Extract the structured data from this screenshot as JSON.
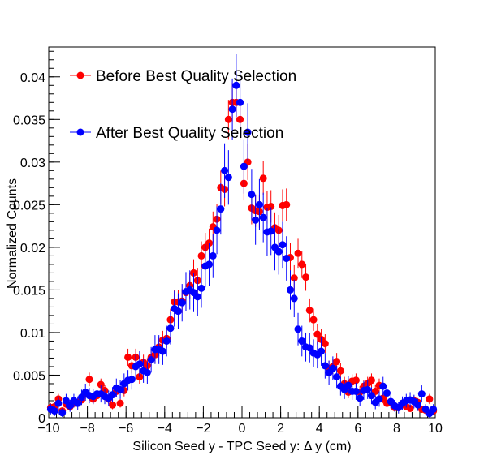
{
  "chart_data": {
    "type": "scatter",
    "title": "",
    "xlabel": "Silicon Seed y - TPC Seed y:     Δ y (cm)",
    "ylabel": "Normalized Counts",
    "xlim": [
      -10,
      10
    ],
    "ylim": [
      0,
      0.0435
    ],
    "x_ticks": [
      -10,
      -8,
      -6,
      -4,
      -2,
      0,
      2,
      4,
      6,
      8,
      10
    ],
    "x_tick_labels": [
      "−10",
      "−8",
      "−6",
      "−4",
      "−2",
      "0",
      "2",
      "4",
      "6",
      "8",
      "10"
    ],
    "y_ticks": [
      0,
      0.005,
      0.01,
      0.015,
      0.02,
      0.025,
      0.03,
      0.035,
      0.04
    ],
    "y_tick_labels": [
      "0",
      "0.005",
      "0.01",
      "0.015",
      "0.02",
      "0.025",
      "0.03",
      "0.035",
      "0.04"
    ],
    "grid": false,
    "legend_position": "top-left",
    "series": [
      {
        "name": "Before Best Quality Selection",
        "color": "#ff0000",
        "x": [
          -9.9,
          -9.7,
          -9.5,
          -9.3,
          -9.1,
          -8.9,
          -8.7,
          -8.5,
          -8.3,
          -8.1,
          -7.9,
          -7.7,
          -7.5,
          -7.3,
          -7.1,
          -6.9,
          -6.7,
          -6.5,
          -6.3,
          -6.1,
          -5.9,
          -5.7,
          -5.5,
          -5.3,
          -5.1,
          -4.9,
          -4.7,
          -4.5,
          -4.3,
          -4.1,
          -3.9,
          -3.7,
          -3.5,
          -3.3,
          -3.1,
          -2.9,
          -2.7,
          -2.5,
          -2.3,
          -2.1,
          -1.9,
          -1.7,
          -1.5,
          -1.3,
          -1.1,
          -0.9,
          -0.7,
          -0.5,
          -0.3,
          -0.1,
          0.1,
          0.3,
          0.5,
          0.7,
          0.9,
          1.1,
          1.3,
          1.5,
          1.7,
          1.9,
          2.1,
          2.3,
          2.5,
          2.7,
          2.9,
          3.1,
          3.3,
          3.5,
          3.7,
          3.9,
          4.1,
          4.3,
          4.5,
          4.7,
          4.9,
          5.1,
          5.3,
          5.5,
          5.7,
          5.9,
          6.1,
          6.3,
          6.5,
          6.7,
          6.9,
          7.1,
          7.3,
          7.5,
          7.7,
          7.9,
          8.1,
          8.3,
          8.5,
          8.7,
          8.9,
          9.1,
          9.3,
          9.5,
          9.7,
          9.9
        ],
        "y": [
          0.0012,
          0.0013,
          0.0022,
          0.0008,
          0.0016,
          0.0013,
          0.0017,
          0.0018,
          0.0021,
          0.0028,
          0.0045,
          0.0022,
          0.0026,
          0.0039,
          0.0032,
          0.0022,
          0.0015,
          0.0031,
          0.0017,
          0.0032,
          0.0071,
          0.0061,
          0.0071,
          0.0048,
          0.0065,
          0.0061,
          0.0071,
          0.0074,
          0.0083,
          0.0091,
          0.0093,
          0.0115,
          0.0136,
          0.0136,
          0.0137,
          0.0147,
          0.0155,
          0.017,
          0.0161,
          0.019,
          0.02,
          0.0205,
          0.0224,
          0.0233,
          0.027,
          0.0268,
          0.035,
          0.037,
          0.037,
          0.035,
          0.0275,
          0.03,
          0.0246,
          0.0243,
          0.0242,
          0.0281,
          0.0247,
          0.0248,
          0.0223,
          0.022,
          0.0249,
          0.025,
          0.0188,
          0.0164,
          0.0193,
          0.018,
          0.0165,
          0.0126,
          0.0115,
          0.0098,
          0.0092,
          0.0087,
          0.0058,
          0.006,
          0.0066,
          0.0055,
          0.004,
          0.003,
          0.0043,
          0.0044,
          0.003,
          0.0037,
          0.004,
          0.0044,
          0.0031,
          0.0038,
          0.0023,
          0.0017,
          0.0018,
          0.0012,
          0.0012,
          0.0017,
          0.0013,
          0.0011,
          0.002,
          0.0018,
          0.001,
          0.0009,
          0.0022,
          0.0008
        ],
        "err": [
          0.0005,
          0.0005,
          0.0006,
          0.0004,
          0.0005,
          0.0005,
          0.0005,
          0.0005,
          0.0006,
          0.0006,
          0.0008,
          0.0006,
          0.0006,
          0.0007,
          0.0007,
          0.0006,
          0.0005,
          0.0007,
          0.0005,
          0.0007,
          0.001,
          0.0009,
          0.001,
          0.0008,
          0.0009,
          0.0009,
          0.001,
          0.001,
          0.0011,
          0.0011,
          0.0011,
          0.0013,
          0.0014,
          0.0014,
          0.0014,
          0.0014,
          0.0015,
          0.0016,
          0.0015,
          0.0017,
          0.0017,
          0.0017,
          0.0018,
          0.0018,
          0.002,
          0.002,
          0.0023,
          0.0023,
          0.0023,
          0.0023,
          0.002,
          0.0021,
          0.0019,
          0.0019,
          0.0019,
          0.002,
          0.0019,
          0.0019,
          0.0018,
          0.0018,
          0.0019,
          0.0019,
          0.0017,
          0.0015,
          0.0017,
          0.0016,
          0.0016,
          0.0014,
          0.0013,
          0.0012,
          0.0012,
          0.0011,
          0.0009,
          0.0009,
          0.001,
          0.0009,
          0.0008,
          0.0007,
          0.0008,
          0.0008,
          0.0007,
          0.0007,
          0.0008,
          0.0008,
          0.0007,
          0.0008,
          0.0006,
          0.0005,
          0.0005,
          0.0004,
          0.0004,
          0.0005,
          0.0004,
          0.0004,
          0.0006,
          0.0005,
          0.0004,
          0.0004,
          0.0006,
          0.0004
        ]
      },
      {
        "name": "After Best Quality Selection",
        "color": "#0000ff",
        "x": [
          -9.9,
          -9.7,
          -9.5,
          -9.3,
          -9.1,
          -8.9,
          -8.7,
          -8.5,
          -8.3,
          -8.1,
          -7.9,
          -7.7,
          -7.5,
          -7.3,
          -7.1,
          -6.9,
          -6.7,
          -6.5,
          -6.3,
          -6.1,
          -5.9,
          -5.7,
          -5.5,
          -5.3,
          -5.1,
          -4.9,
          -4.7,
          -4.5,
          -4.3,
          -4.1,
          -3.9,
          -3.7,
          -3.5,
          -3.3,
          -3.1,
          -2.9,
          -2.7,
          -2.5,
          -2.3,
          -2.1,
          -1.9,
          -1.7,
          -1.5,
          -1.3,
          -1.1,
          -0.9,
          -0.7,
          -0.5,
          -0.3,
          -0.1,
          0.1,
          0.3,
          0.5,
          0.7,
          0.9,
          1.1,
          1.3,
          1.5,
          1.7,
          1.9,
          2.1,
          2.3,
          2.5,
          2.7,
          2.9,
          3.1,
          3.3,
          3.5,
          3.7,
          3.9,
          4.1,
          4.3,
          4.5,
          4.7,
          4.9,
          5.1,
          5.3,
          5.5,
          5.7,
          5.9,
          6.1,
          6.3,
          6.5,
          6.7,
          6.9,
          7.1,
          7.3,
          7.5,
          7.7,
          7.9,
          8.1,
          8.3,
          8.5,
          8.7,
          8.9,
          9.1,
          9.3,
          9.5,
          9.7,
          9.9
        ],
        "y": [
          0.001,
          0.0008,
          0.0017,
          0.0006,
          0.002,
          0.0014,
          0.002,
          0.0017,
          0.0024,
          0.003,
          0.0026,
          0.0025,
          0.0028,
          0.0028,
          0.0025,
          0.0023,
          0.0027,
          0.0035,
          0.0033,
          0.004,
          0.0044,
          0.0045,
          0.006,
          0.0063,
          0.0055,
          0.0053,
          0.0068,
          0.008,
          0.008,
          0.0078,
          0.009,
          0.0105,
          0.0128,
          0.0125,
          0.0135,
          0.0148,
          0.015,
          0.0147,
          0.0142,
          0.0152,
          0.0178,
          0.018,
          0.019,
          0.022,
          0.0245,
          0.029,
          0.0282,
          0.0362,
          0.039,
          0.037,
          0.0295,
          0.0335,
          0.0262,
          0.0232,
          0.025,
          0.0235,
          0.0218,
          0.0219,
          0.02,
          0.0195,
          0.0203,
          0.0187,
          0.015,
          0.014,
          0.0104,
          0.009,
          0.0083,
          0.0082,
          0.0076,
          0.0074,
          0.0078,
          0.0061,
          0.0053,
          0.0058,
          0.0048,
          0.0037,
          0.0033,
          0.0038,
          0.0031,
          0.0031,
          0.0023,
          0.0032,
          0.0033,
          0.0026,
          0.0018,
          0.0022,
          0.0037,
          0.0029,
          0.0019,
          0.0014,
          0.0012,
          0.0017,
          0.002,
          0.0021,
          0.0019,
          0.0015,
          0.0028,
          0.001,
          0.0005,
          0.001
        ],
        "err": [
          0.0006,
          0.0006,
          0.0008,
          0.0005,
          0.0008,
          0.0007,
          0.0008,
          0.0008,
          0.0009,
          0.001,
          0.0009,
          0.0009,
          0.001,
          0.001,
          0.0009,
          0.0009,
          0.0009,
          0.0011,
          0.0011,
          0.0012,
          0.0012,
          0.0012,
          0.0014,
          0.0015,
          0.0014,
          0.0013,
          0.0015,
          0.0017,
          0.0017,
          0.0016,
          0.0018,
          0.0019,
          0.0021,
          0.0021,
          0.0022,
          0.0023,
          0.0023,
          0.0023,
          0.0023,
          0.0023,
          0.0025,
          0.0025,
          0.0026,
          0.0028,
          0.003,
          0.0032,
          0.0032,
          0.0036,
          0.0037,
          0.0036,
          0.0032,
          0.0034,
          0.003,
          0.0029,
          0.003,
          0.0029,
          0.0028,
          0.0028,
          0.0027,
          0.0027,
          0.0027,
          0.0026,
          0.0023,
          0.0022,
          0.0019,
          0.0018,
          0.0017,
          0.0017,
          0.0016,
          0.0016,
          0.0017,
          0.0015,
          0.0014,
          0.0014,
          0.0013,
          0.0011,
          0.0011,
          0.0011,
          0.001,
          0.001,
          0.0009,
          0.0011,
          0.0011,
          0.001,
          0.0008,
          0.0009,
          0.0011,
          0.001,
          0.0008,
          0.0007,
          0.0007,
          0.0008,
          0.0008,
          0.0009,
          0.0008,
          0.0007,
          0.001,
          0.0006,
          0.0005,
          0.0006
        ]
      }
    ]
  }
}
